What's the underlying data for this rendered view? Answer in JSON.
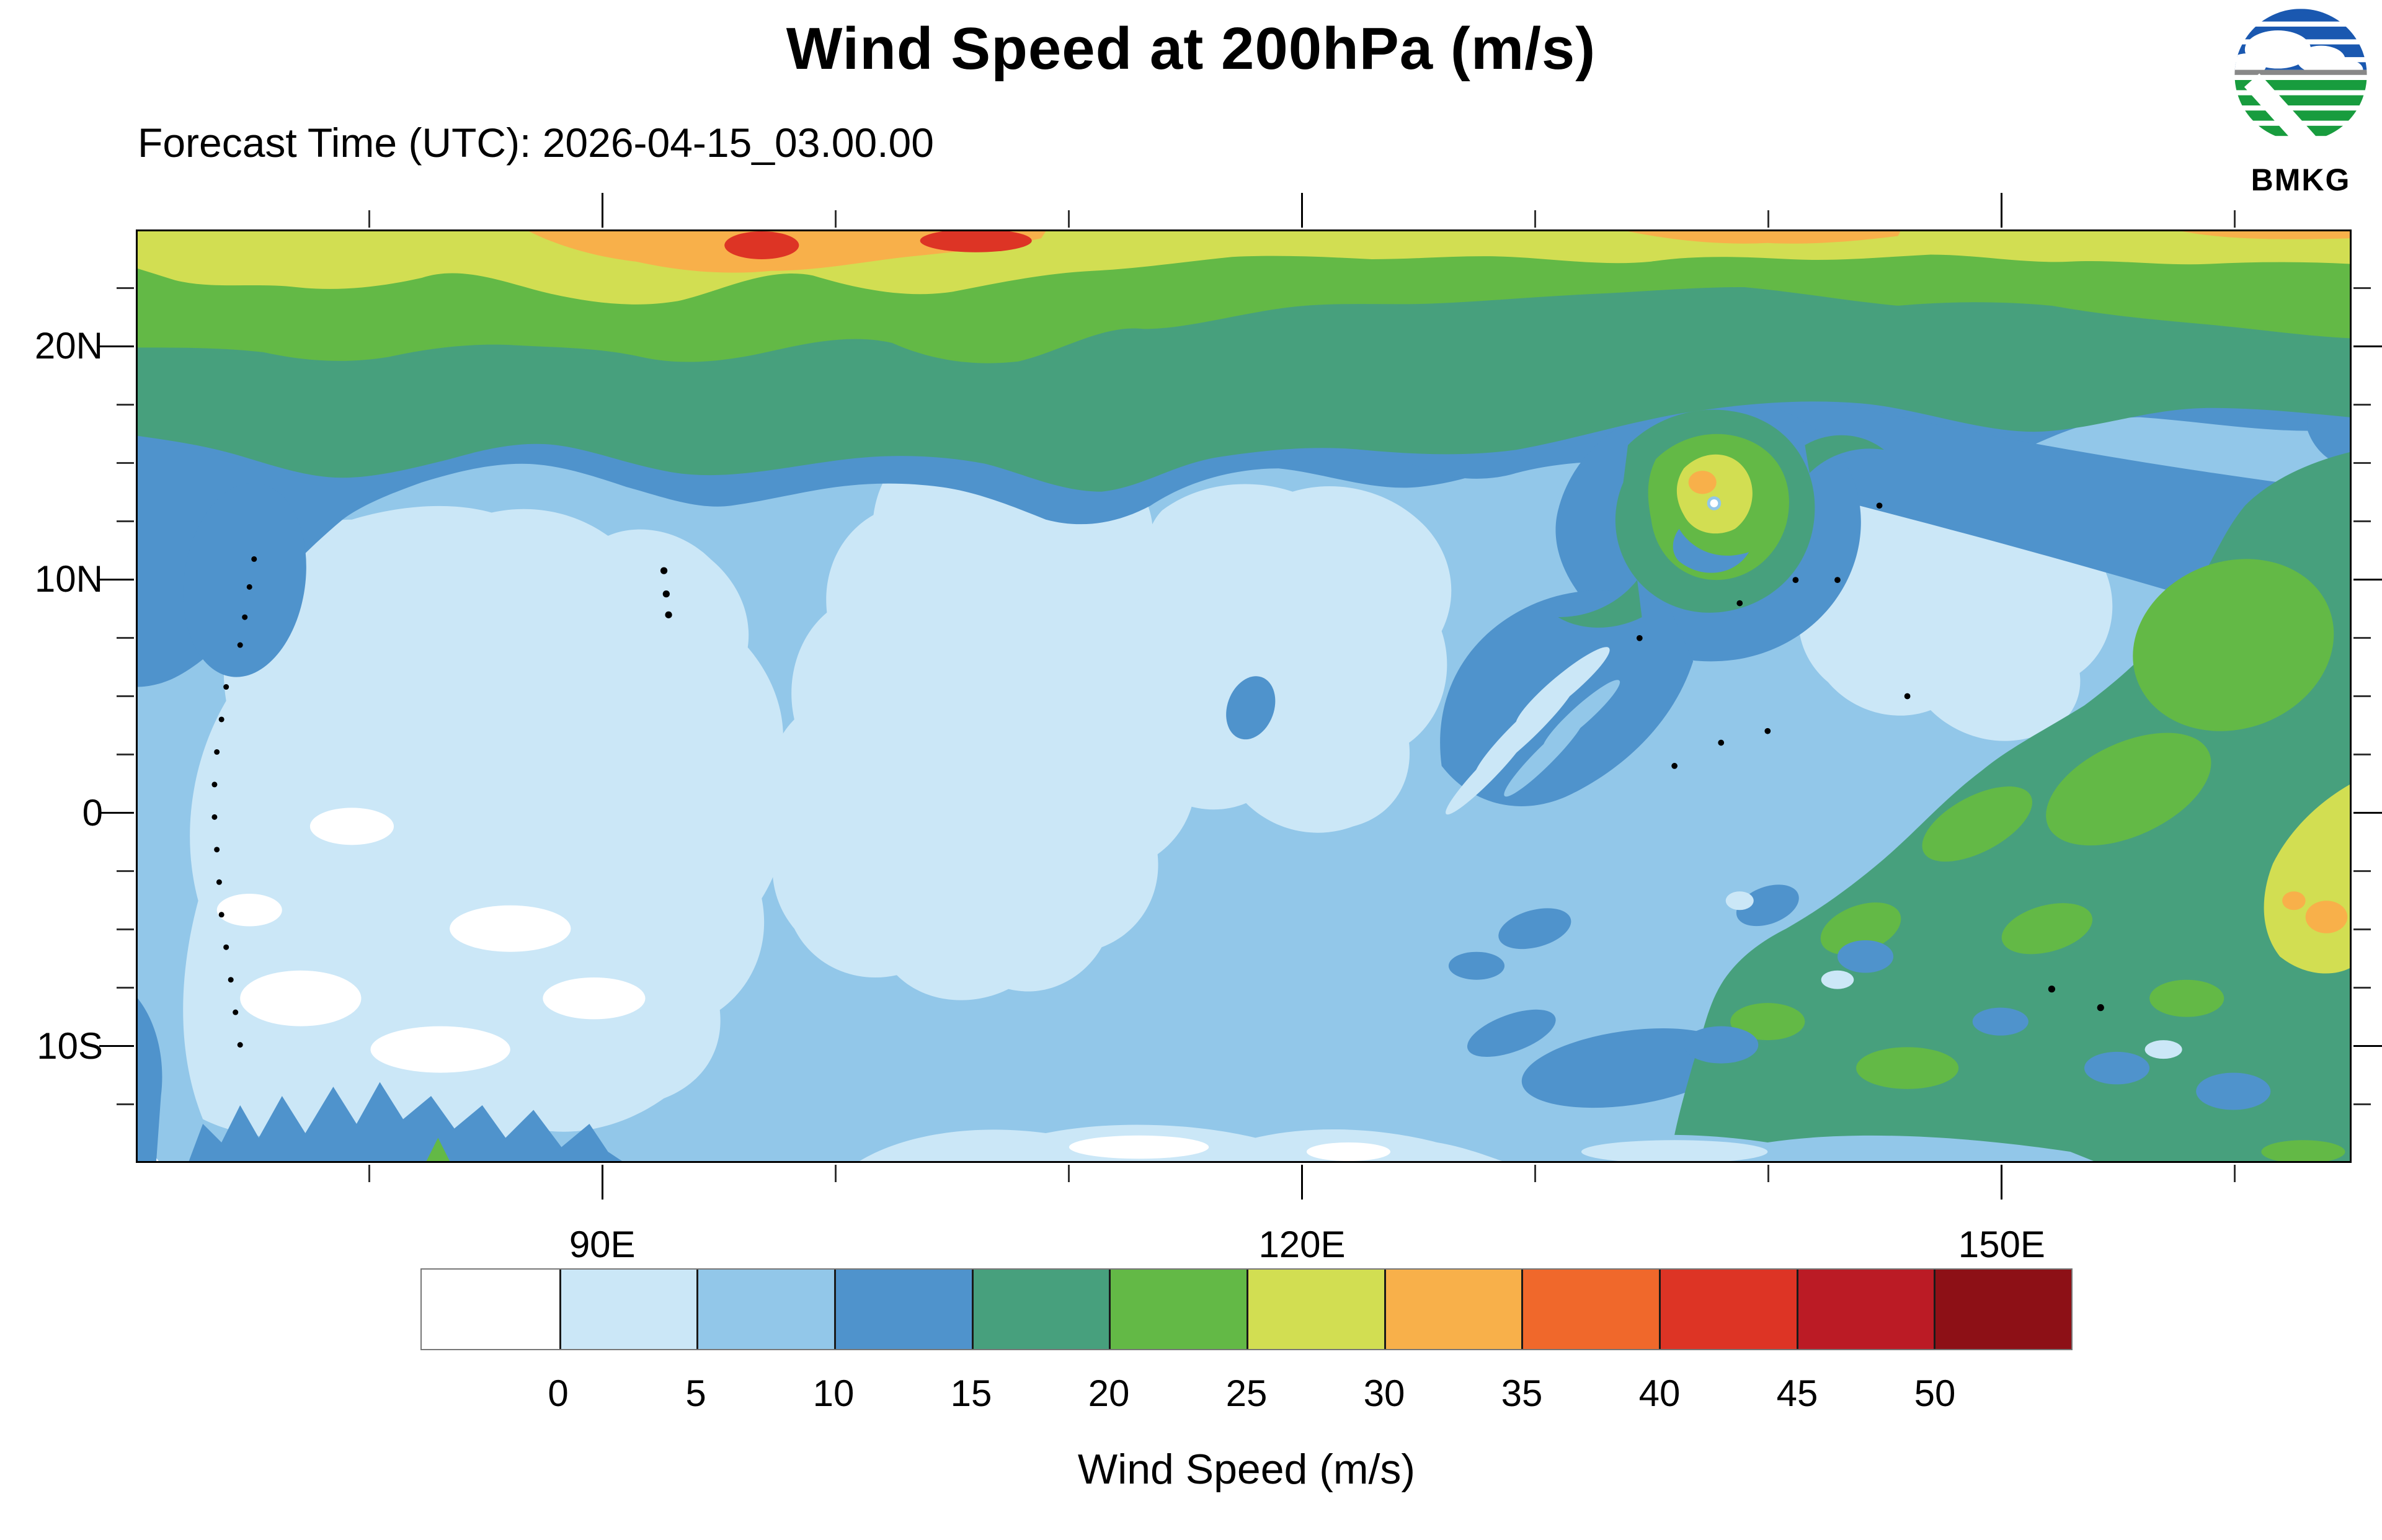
{
  "header": {
    "title": "Wind Speed at 200hPa (m/s)",
    "forecast_line": "Forecast Time (UTC): 2026-04-15_03.00.00",
    "logo_text": "BMKG"
  },
  "map": {
    "extent": {
      "lon_min": 70,
      "lon_max": 165,
      "lat_min": -15,
      "lat_max": 25
    },
    "lat_ticks": [
      {
        "deg": 22.5,
        "major": false
      },
      {
        "deg": 20,
        "label": "20N",
        "major": true
      },
      {
        "deg": 17.5,
        "major": false
      },
      {
        "deg": 15,
        "major": false
      },
      {
        "deg": 12.5,
        "major": false
      },
      {
        "deg": 10,
        "label": "10N",
        "major": true
      },
      {
        "deg": 7.5,
        "major": false
      },
      {
        "deg": 5,
        "major": false
      },
      {
        "deg": 2.5,
        "major": false
      },
      {
        "deg": 0,
        "label": "0",
        "major": true
      },
      {
        "deg": -2.5,
        "major": false
      },
      {
        "deg": -5,
        "major": false
      },
      {
        "deg": -7.5,
        "major": false
      },
      {
        "deg": -10,
        "label": "10S",
        "major": true
      },
      {
        "deg": -12.5,
        "major": false
      }
    ],
    "lon_ticks": [
      {
        "deg": 80,
        "major": false
      },
      {
        "deg": 90,
        "label": "90E",
        "major": true
      },
      {
        "deg": 100,
        "major": false
      },
      {
        "deg": 110,
        "major": false
      },
      {
        "deg": 120,
        "label": "120E",
        "major": true
      },
      {
        "deg": 130,
        "major": false
      },
      {
        "deg": 140,
        "major": false
      },
      {
        "deg": 150,
        "label": "150E",
        "major": true
      },
      {
        "deg": 160,
        "major": false
      }
    ]
  },
  "colorbar": {
    "title": "Wind Speed (m/s)",
    "levels": [
      "0",
      "5",
      "10",
      "15",
      "20",
      "25",
      "30",
      "35",
      "40",
      "45",
      "50"
    ],
    "colors": [
      "#ffffff",
      "#cbe7f7",
      "#92c7e9",
      "#4f93cc",
      "#47a07d",
      "#63b946",
      "#d2de52",
      "#f8b04a",
      "#f0682b",
      "#dd3425",
      "#bb1b25",
      "#8d1016"
    ]
  },
  "logo_colors": {
    "blue": "#1a58b0",
    "green": "#189c3e",
    "gray": "#888888"
  },
  "chart_data": {
    "type": "heatmap",
    "title": "Wind Speed at 200hPa (m/s)",
    "subtitle": "Forecast Time (UTC): 2026-04-15_03.00.00",
    "units": "m/s",
    "xlabel": "",
    "ylabel": "",
    "x_tick_labels": [
      "90E",
      "120E",
      "150E"
    ],
    "y_tick_labels": [
      "20N",
      "10N",
      "0",
      "10S"
    ],
    "extent": {
      "lon": [
        70,
        165
      ],
      "lat": [
        -15,
        25
      ]
    },
    "contour_levels": [
      0,
      5,
      10,
      15,
      20,
      25,
      30,
      35,
      40,
      45,
      50
    ],
    "palette": [
      "#ffffff",
      "#cbe7f7",
      "#92c7e9",
      "#4f93cc",
      "#47a07d",
      "#63b946",
      "#d2de52",
      "#f8b04a",
      "#f0682b",
      "#dd3425",
      "#bb1b25",
      "#8d1016"
    ],
    "legend_title": "Wind Speed (m/s)",
    "grid": false,
    "features": [
      {
        "name": "subtropical_jet",
        "desc": "Zonal band of 20-40 m/s along the northern edge (22-25N) with orange 30-40 m/s cores near 85-105E and 125-135E and small >40 m/s red maxima near 96E and 105E at 25N"
      },
      {
        "name": "tropical_cyclone",
        "lon": 138,
        "lat": 13.5,
        "desc": "Closed cyclonic swirl east of the Philippines: 15-30 m/s spiral ring (teal/green/yellow, small 30-35 m/s orange patch) around a calm <10 m/s eye, with curved light-wind rainband streaks to its south-west"
      },
      {
        "name": "southern_jet",
        "desc": "Broad 15-25 m/s teal/green region over New Guinea, Solomon Islands and the Coral Sea, with a 25-30 m/s yellow maximum (local 30-35 m/s orange) at the eastern edge near 5-8S"
      },
      {
        "name": "calm_tropics",
        "desc": "0-10 m/s light-blue/white winds over the Indian Ocean, India, Indochina, South China Sea and the Maritime Continent; 10-15 m/s blue band along ~17-20N and along 12-15S at the south-west edge"
      }
    ]
  }
}
